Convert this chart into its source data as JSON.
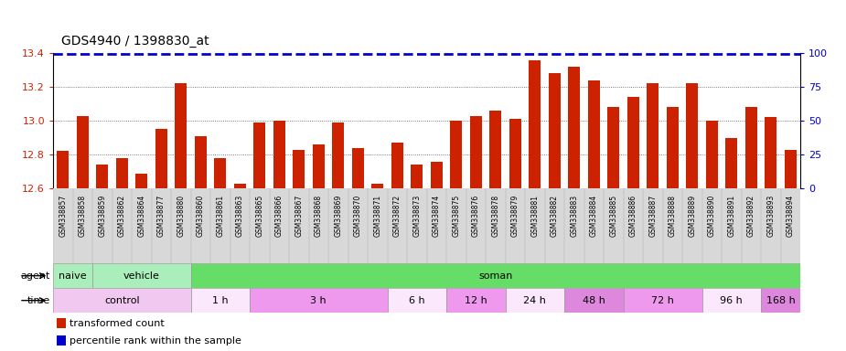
{
  "title": "GDS4940 / 1398830_at",
  "bar_color": "#cc2200",
  "percentile_color": "#0000cc",
  "ylim": [
    12.6,
    13.4
  ],
  "yticks": [
    12.6,
    12.8,
    13.0,
    13.2,
    13.4
  ],
  "y2lim": [
    0,
    100
  ],
  "y2ticks": [
    0,
    25,
    50,
    75,
    100
  ],
  "samples": [
    "GSM338857",
    "GSM338858",
    "GSM338859",
    "GSM338862",
    "GSM338864",
    "GSM338877",
    "GSM338880",
    "GSM338860",
    "GSM338861",
    "GSM338863",
    "GSM338865",
    "GSM338866",
    "GSM338867",
    "GSM338868",
    "GSM338869",
    "GSM338870",
    "GSM338871",
    "GSM338872",
    "GSM338873",
    "GSM338874",
    "GSM338875",
    "GSM338876",
    "GSM338878",
    "GSM338879",
    "GSM338881",
    "GSM338882",
    "GSM338883",
    "GSM338884",
    "GSM338885",
    "GSM338886",
    "GSM338887",
    "GSM338888",
    "GSM338889",
    "GSM338890",
    "GSM338891",
    "GSM338892",
    "GSM338893",
    "GSM338894"
  ],
  "values": [
    12.82,
    13.03,
    12.74,
    12.78,
    12.69,
    12.95,
    13.22,
    12.91,
    12.78,
    12.63,
    12.99,
    13.0,
    12.83,
    12.86,
    12.99,
    12.84,
    12.63,
    12.87,
    12.74,
    12.76,
    13.0,
    13.03,
    13.06,
    13.01,
    13.36,
    13.28,
    13.32,
    13.24,
    13.08,
    13.14,
    13.22,
    13.08,
    13.22,
    13.0,
    12.9,
    13.08,
    13.02,
    12.83
  ],
  "agent_row": [
    {
      "label": "naive",
      "start": 0,
      "end": 2,
      "color": "#aaeebb"
    },
    {
      "label": "vehicle",
      "start": 2,
      "end": 7,
      "color": "#aaeebb"
    },
    {
      "label": "soman",
      "start": 7,
      "end": 38,
      "color": "#66dd66"
    }
  ],
  "time_row": [
    {
      "label": "control",
      "start": 0,
      "end": 7,
      "color": "#f0c8f0"
    },
    {
      "label": "1 h",
      "start": 7,
      "end": 10,
      "color": "#fce8fc"
    },
    {
      "label": "3 h",
      "start": 10,
      "end": 17,
      "color": "#ee99ee"
    },
    {
      "label": "6 h",
      "start": 17,
      "end": 20,
      "color": "#fce8fc"
    },
    {
      "label": "12 h",
      "start": 20,
      "end": 23,
      "color": "#ee99ee"
    },
    {
      "label": "24 h",
      "start": 23,
      "end": 26,
      "color": "#fce8fc"
    },
    {
      "label": "48 h",
      "start": 26,
      "end": 29,
      "color": "#dd88dd"
    },
    {
      "label": "72 h",
      "start": 29,
      "end": 33,
      "color": "#ee99ee"
    },
    {
      "label": "96 h",
      "start": 33,
      "end": 36,
      "color": "#fce8fc"
    },
    {
      "label": "168 h",
      "start": 36,
      "end": 38,
      "color": "#dd88dd"
    }
  ],
  "xtick_bg_color": "#d8d8d8",
  "bg_color": "#ffffff",
  "grid_color": "#555555",
  "tick_label_color_left": "#cc2200",
  "tick_label_color_right": "#0000cc"
}
